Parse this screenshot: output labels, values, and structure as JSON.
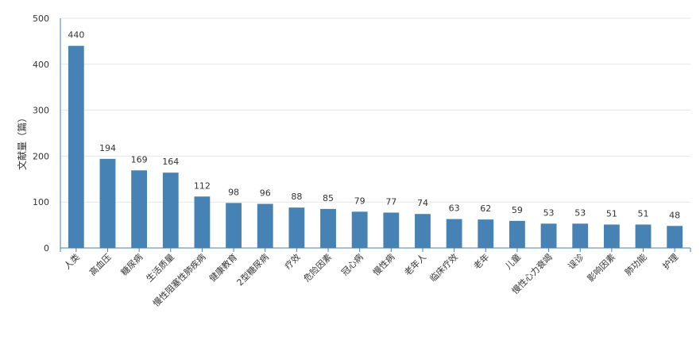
{
  "chart_data": {
    "type": "bar",
    "title": "",
    "xlabel": "",
    "ylabel": "文献量（篇）",
    "ylim": [
      0,
      500
    ],
    "yticks": [
      0,
      100,
      200,
      300,
      400,
      500
    ],
    "grid": true,
    "categories": [
      "人类",
      "高血压",
      "糖尿病",
      "生活质量",
      "慢性阻塞性肺疾病",
      "健康教育",
      "2型糖尿病",
      "疗效",
      "危险因素",
      "冠心病",
      "慢性病",
      "老年人",
      "临床疗效",
      "老年",
      "儿童",
      "慢性心力衰竭",
      "误诊",
      "影响因素",
      "肺功能",
      "护理"
    ],
    "values": [
      440,
      194,
      169,
      164,
      112,
      98,
      96,
      88,
      85,
      79,
      77,
      74,
      63,
      62,
      59,
      53,
      53,
      51,
      51,
      48
    ],
    "colors": {
      "bar": "#4682b4",
      "grid": "#e5e5e5",
      "axis": "#4682b4",
      "text": "#333333"
    }
  }
}
